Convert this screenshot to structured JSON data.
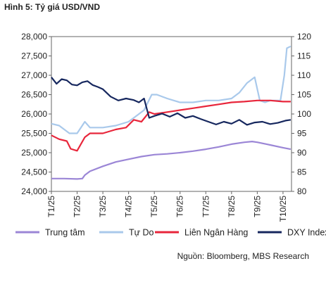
{
  "figure": {
    "title": "Hình 5: Tỷ giá USD/VND",
    "source": "Nguồn: Bloomberg, MBS Research"
  },
  "chart_data": {
    "type": "line",
    "title": "Hình 5: Tỷ giá USD/VND",
    "x_labels": [
      "T1/25",
      "T2/25",
      "T3/25",
      "T4/25",
      "T5/25",
      "T6/25",
      "T7/25",
      "T8/25",
      "T9/25",
      "T10/25"
    ],
    "x_range": [
      0,
      9.33
    ],
    "y_left": {
      "range": [
        24000,
        28000
      ],
      "ticks": [
        24000,
        24500,
        25000,
        25500,
        26000,
        26500,
        27000,
        27500,
        28000
      ],
      "tick_labels": [
        "24,000",
        "24,500",
        "25,000",
        "25,500",
        "26,000",
        "26,500",
        "27,000",
        "27,500",
        "28,000"
      ]
    },
    "y_right": {
      "range": [
        80,
        120
      ],
      "ticks": [
        80,
        85,
        90,
        95,
        100,
        105,
        110,
        115,
        120
      ],
      "tick_labels": [
        "80",
        "85",
        "90",
        "95",
        "100",
        "105",
        "110",
        "115",
        "120"
      ]
    },
    "grid": false,
    "legend_position": "bottom",
    "series": [
      {
        "name": "Trung tâm",
        "axis": "left",
        "color": "#9B86D6",
        "x": [
          0,
          0.5,
          1,
          1.2,
          1.3,
          1.5,
          2,
          2.5,
          3,
          3.5,
          4,
          4.5,
          5,
          5.5,
          6,
          6.5,
          7,
          7.5,
          7.8,
          8,
          8.5,
          9,
          9.3
        ],
        "y": [
          24330,
          24330,
          24320,
          24330,
          24420,
          24520,
          24650,
          24760,
          24830,
          24900,
          24950,
          24970,
          25000,
          25040,
          25090,
          25150,
          25220,
          25270,
          25290,
          25270,
          25200,
          25130,
          25090
        ]
      },
      {
        "name": "Tự Do",
        "axis": "left",
        "color": "#A9C9EB",
        "x": [
          0,
          0.3,
          0.7,
          1,
          1.3,
          1.5,
          2,
          2.5,
          3,
          3.2,
          3.6,
          3.9,
          4.1,
          4.5,
          5,
          5.5,
          6,
          6.5,
          7,
          7.3,
          7.6,
          7.9,
          8.1,
          8.3,
          8.5,
          8.9,
          9.05,
          9.15,
          9.3
        ],
        "y": [
          25750,
          25700,
          25500,
          25500,
          25800,
          25650,
          25650,
          25700,
          25800,
          25900,
          26100,
          26500,
          26500,
          26400,
          26300,
          26300,
          26350,
          26350,
          26400,
          26550,
          26800,
          26950,
          26350,
          26300,
          26350,
          26350,
          27000,
          27700,
          27750
        ]
      },
      {
        "name": "Liên Ngân Hàng",
        "axis": "left",
        "color": "#E8263B",
        "x": [
          0,
          0.3,
          0.6,
          0.75,
          1,
          1.3,
          1.5,
          2,
          2.5,
          2.9,
          3.2,
          3.5,
          3.8,
          4,
          4.5,
          5,
          5.5,
          6,
          6.5,
          7,
          7.5,
          8,
          8.5,
          9,
          9.3
        ],
        "y": [
          25450,
          25350,
          25300,
          25100,
          25050,
          25400,
          25500,
          25500,
          25600,
          25650,
          25850,
          25800,
          26050,
          26000,
          26050,
          26100,
          26150,
          26200,
          26250,
          26300,
          26320,
          26350,
          26350,
          26320,
          26320
        ]
      },
      {
        "name": "DXY Index",
        "axis": "right",
        "color": "#16275E",
        "x": [
          0,
          0.2,
          0.4,
          0.6,
          0.8,
          1,
          1.2,
          1.4,
          1.6,
          1.8,
          2,
          2.3,
          2.6,
          2.9,
          3.2,
          3.4,
          3.6,
          3.8,
          4,
          4.3,
          4.6,
          4.9,
          5.2,
          5.5,
          5.8,
          6.1,
          6.4,
          6.7,
          7,
          7.3,
          7.6,
          7.9,
          8.2,
          8.5,
          8.8,
          9.1,
          9.3
        ],
        "y": [
          109.5,
          107.8,
          109,
          108.7,
          107.6,
          107.4,
          108.2,
          108.5,
          107.5,
          107,
          106.4,
          104.5,
          103.5,
          104,
          103.6,
          103,
          104,
          99,
          99.5,
          100.1,
          99.3,
          100.2,
          99,
          99.5,
          98.7,
          98,
          97.3,
          98,
          97.5,
          98.5,
          97.2,
          97.8,
          98,
          97.4,
          97.7,
          98.3,
          98.5
        ]
      }
    ]
  }
}
